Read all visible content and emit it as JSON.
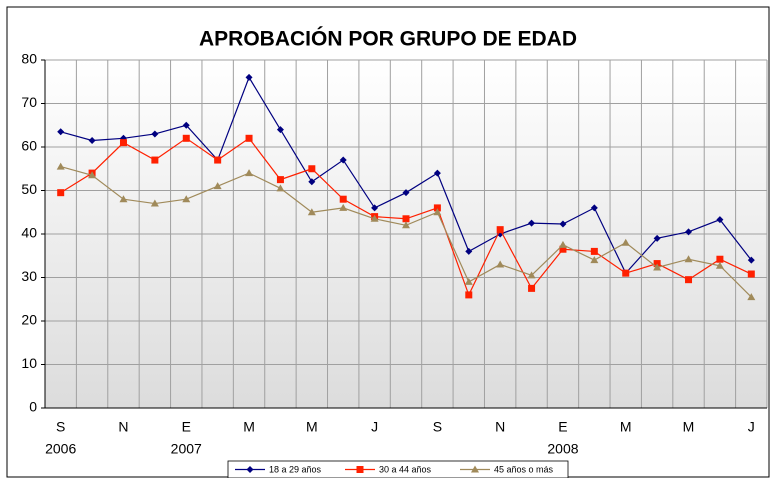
{
  "chart_data": {
    "type": "line",
    "title": "APROBACIÓN POR GRUPO DE EDAD",
    "categories": [
      "S",
      null,
      "N",
      null,
      "E",
      null,
      "M",
      null,
      "M",
      null,
      "J",
      null,
      "S",
      null,
      "N",
      null,
      "E",
      null,
      "M",
      null,
      "M",
      null,
      "J"
    ],
    "category_years": [
      "2006",
      null,
      null,
      null,
      "2007",
      null,
      null,
      null,
      null,
      null,
      null,
      null,
      null,
      null,
      null,
      null,
      "2008",
      null,
      null,
      null,
      null,
      null,
      null
    ],
    "series": [
      {
        "name": "18 a 29 años",
        "color": "#000080",
        "marker": "diamond",
        "values": [
          63.5,
          61.5,
          62,
          63,
          65,
          57,
          76,
          64,
          52,
          57,
          46,
          49.5,
          54,
          36,
          40,
          42.5,
          42.3,
          46,
          31,
          39,
          40.5,
          43.3,
          34
        ]
      },
      {
        "name": "30 a 44 años",
        "color": "#ff2000",
        "marker": "square",
        "values": [
          49.5,
          54,
          61,
          57,
          62,
          57,
          62,
          52.5,
          55,
          48,
          44,
          43.5,
          46,
          26,
          41,
          27.5,
          36.5,
          36,
          31,
          33.2,
          29.5,
          34.2,
          30.8
        ]
      },
      {
        "name": "45 años o más",
        "color": "#a08a5a",
        "marker": "triangle",
        "values": [
          55.5,
          53.5,
          48,
          47,
          48,
          51,
          54,
          50.5,
          45,
          46,
          43.5,
          42,
          45,
          29,
          33,
          30.5,
          37.5,
          34,
          38,
          32.3,
          34.2,
          32.7,
          25.5
        ]
      }
    ],
    "ylim": [
      0,
      80
    ],
    "yticks": [
      0,
      10,
      20,
      30,
      40,
      50,
      60,
      70,
      80
    ],
    "grid": true
  }
}
